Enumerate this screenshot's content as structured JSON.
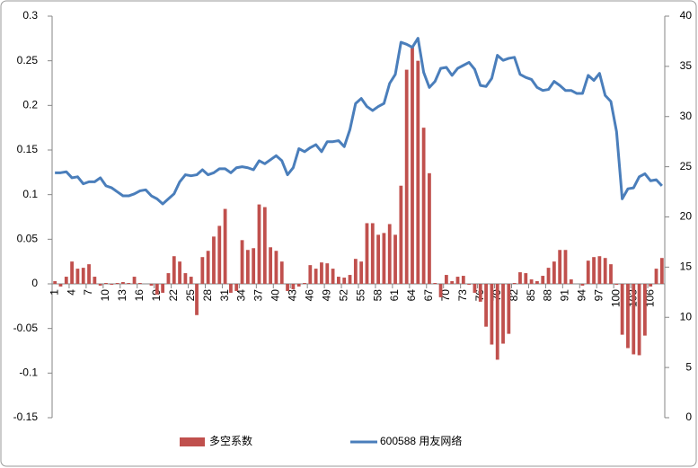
{
  "chart_data": {
    "type": "bar_line",
    "categories": [
      "1",
      null,
      null,
      "4",
      null,
      null,
      "7",
      null,
      null,
      "10",
      null,
      null,
      "13",
      null,
      null,
      "16",
      null,
      null,
      "19",
      null,
      null,
      "22",
      null,
      null,
      "25",
      null,
      null,
      "28",
      null,
      null,
      "31",
      null,
      null,
      "34",
      null,
      null,
      "37",
      null,
      null,
      "40",
      null,
      null,
      "43",
      null,
      null,
      "46",
      null,
      null,
      "49",
      null,
      null,
      "52",
      null,
      null,
      "55",
      null,
      null,
      "58",
      null,
      null,
      "61",
      null,
      null,
      "64",
      null,
      null,
      "67",
      null,
      null,
      "70",
      null,
      null,
      "73",
      null,
      null,
      "76",
      null,
      null,
      "79",
      null,
      null,
      "82",
      null,
      null,
      "85",
      null,
      null,
      "88",
      null,
      null,
      "91",
      null,
      null,
      "94",
      null,
      null,
      "97",
      null,
      null,
      "100",
      null,
      null,
      "103",
      null,
      null,
      "106",
      null,
      null
    ],
    "series": [
      {
        "name": "多空系数",
        "type": "bar",
        "axis": "y",
        "color": "#c0504d",
        "values": [
          0.003,
          -0.003,
          0.008,
          0.025,
          0.017,
          0.018,
          0.022,
          0.008,
          -0.002,
          0.001,
          -0.001,
          0.001,
          0.002,
          0.001,
          0.008,
          0.001,
          0,
          -0.002,
          -0.012,
          -0.01,
          0.012,
          0.031,
          0.025,
          0.012,
          0.008,
          -0.035,
          0.03,
          0.037,
          0.053,
          0.065,
          0.084,
          -0.01,
          -0.008,
          0.049,
          0.038,
          0.04,
          0.089,
          0.086,
          0.041,
          0.037,
          0.025,
          -0.008,
          -0.006,
          -0.003,
          0.001,
          0.021,
          0.017,
          0.024,
          0.023,
          0.017,
          0.008,
          0.007,
          0.01,
          0.028,
          0.025,
          0.068,
          0.068,
          0.055,
          0.057,
          0.067,
          0.055,
          0.11,
          0.24,
          0.265,
          0.25,
          0.175,
          0.124,
          0.001,
          -0.015,
          0.01,
          0.003,
          0.008,
          0.009,
          -0.001,
          -0.01,
          -0.02,
          -0.048,
          -0.068,
          -0.085,
          -0.067,
          -0.056,
          0.001,
          0.013,
          0.012,
          0.005,
          0.003,
          0.009,
          0.018,
          0.025,
          0.038,
          0.038,
          0.005,
          0,
          -0.002,
          0.026,
          0.03,
          0.031,
          0.029,
          0.022,
          -0.001,
          -0.057,
          -0.072,
          -0.079,
          -0.08,
          -0.058,
          -0.003,
          0.017,
          0.029
        ]
      },
      {
        "name": "600588 用友网络",
        "type": "line",
        "axis": "y2",
        "color": "#4a7ebb",
        "values": [
          24.4,
          24.4,
          24.5,
          23.9,
          24.0,
          23.3,
          23.5,
          23.5,
          23.9,
          23.1,
          22.9,
          22.5,
          22.1,
          22.1,
          22.3,
          22.6,
          22.7,
          22.1,
          21.8,
          21.3,
          21.8,
          22.3,
          23.5,
          24.2,
          24.1,
          24.2,
          24.7,
          24.2,
          24.4,
          24.8,
          24.8,
          24.4,
          24.9,
          25.0,
          24.9,
          24.7,
          25.6,
          25.3,
          25.7,
          26.1,
          25.6,
          24.2,
          24.9,
          26.8,
          26.5,
          26.9,
          27.2,
          26.5,
          27.5,
          27.5,
          27.6,
          27.0,
          28.7,
          31.3,
          31.8,
          31.0,
          30.6,
          31.0,
          31.3,
          33.3,
          34.2,
          37.4,
          37.2,
          36.9,
          37.8,
          34.4,
          32.9,
          33.5,
          34.8,
          34.9,
          34.1,
          34.8,
          35.1,
          35.4,
          34.7,
          33.1,
          33.0,
          33.8,
          36.1,
          35.6,
          35.8,
          35.9,
          34.2,
          33.9,
          33.7,
          32.9,
          32.6,
          32.7,
          33.5,
          33.1,
          32.6,
          32.6,
          32.3,
          32.3,
          34.1,
          33.6,
          34.3,
          32.1,
          31.5,
          28.5,
          21.8,
          22.8,
          22.9,
          24.0,
          24.3,
          23.6,
          23.7,
          23.1
        ]
      }
    ],
    "ylim": [
      -0.15,
      0.3
    ],
    "yticks": [
      -0.15,
      -0.1,
      -0.05,
      0,
      0.05,
      0.1,
      0.15,
      0.2,
      0.25,
      0.3
    ],
    "y2lim": [
      0,
      40
    ],
    "y2ticks": [
      0,
      5,
      10,
      15,
      20,
      25,
      30,
      35,
      40
    ],
    "grid": false,
    "legend": "bottom"
  }
}
